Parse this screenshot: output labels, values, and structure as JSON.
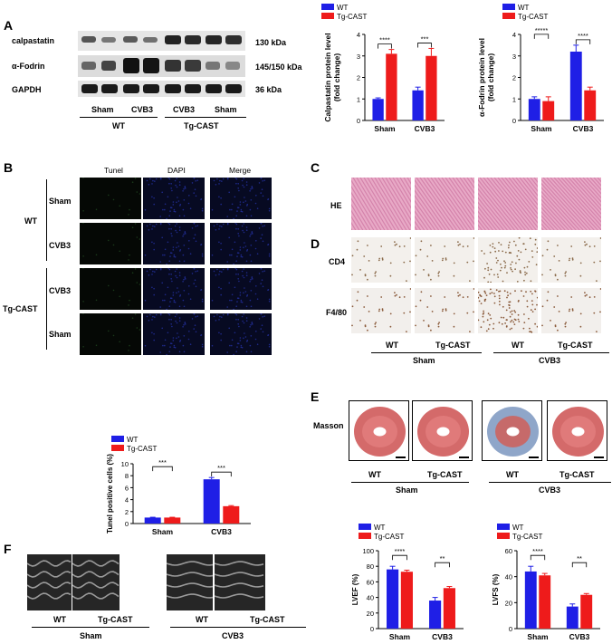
{
  "panels": {
    "A": "A",
    "B": "B",
    "C": "C",
    "D": "D",
    "E": "E",
    "F": "F"
  },
  "blot": {
    "rows": [
      {
        "label": "calpastatin",
        "kda": "130 kDa"
      },
      {
        "label": "α-Fodrin",
        "kda": "145/150 kDa"
      },
      {
        "label": "GAPDH",
        "kda": "36 kDa"
      }
    ],
    "lanes_top": [
      "Sham",
      "CVB3",
      "CVB3",
      "Sham"
    ],
    "groups": [
      "WT",
      "Tg-CAST"
    ]
  },
  "colors": {
    "wt": "#1f1fe6",
    "tg": "#ee1b1b"
  },
  "legend": {
    "wt": "WT",
    "tg": "Tg-CAST"
  },
  "tunel_grid": {
    "columns": [
      "Tunel",
      "DAPI",
      "Merge"
    ],
    "rows": [
      "Sham",
      "CVB3",
      "CVB3",
      "Sham"
    ],
    "groups": [
      "WT",
      "Tg-CAST"
    ]
  },
  "histology": {
    "he_label": "HE",
    "cd4_label": "CD4",
    "f480_label": "F4/80",
    "columns": [
      "WT",
      "Tg-CAST",
      "WT",
      "Tg-CAST"
    ],
    "groups": [
      "Sham",
      "CVB3"
    ]
  },
  "masson": {
    "label": "Masson",
    "columns": [
      "WT",
      "Tg-CAST",
      "WT",
      "Tg-CAST"
    ],
    "groups": [
      "Sham",
      "CVB3"
    ]
  },
  "echo": {
    "columns": [
      "WT",
      "Tg-CAST",
      "WT",
      "Tg-CAST"
    ],
    "groups": [
      "Sham",
      "CVB3"
    ]
  },
  "chart_data": [
    {
      "id": "calpastatin",
      "type": "bar",
      "categories": [
        "Sham",
        "CVB3"
      ],
      "ylabel": "Calpastatin protein level\n(fold change)",
      "ylim": [
        0,
        4
      ],
      "yticks": [
        0,
        1,
        2,
        3,
        4
      ],
      "series": [
        {
          "name": "WT",
          "values": [
            1.0,
            1.4
          ],
          "errors": [
            0.05,
            0.15
          ]
        },
        {
          "name": "Tg-CAST",
          "values": [
            3.1,
            3.0
          ],
          "errors": [
            0.2,
            0.35
          ]
        }
      ],
      "brackets": [
        {
          "cat": 0,
          "label": "****"
        },
        {
          "cat": 1,
          "label": "***"
        }
      ]
    },
    {
      "id": "fodrin",
      "type": "bar",
      "categories": [
        "Sham",
        "CVB3"
      ],
      "ylabel": "α-Fodrin protein level\n(fold change)",
      "ylim": [
        0,
        4
      ],
      "yticks": [
        0,
        1,
        2,
        3,
        4
      ],
      "series": [
        {
          "name": "WT",
          "values": [
            1.0,
            3.2
          ],
          "errors": [
            0.1,
            0.3
          ]
        },
        {
          "name": "Tg-CAST",
          "values": [
            0.9,
            1.4
          ],
          "errors": [
            0.2,
            0.15
          ]
        }
      ],
      "brackets": [
        {
          "from": [
            0,
            0
          ],
          "to": [
            1,
            0
          ],
          "label": "*****"
        },
        {
          "cat": 1,
          "label": "****"
        }
      ]
    },
    {
      "id": "tunel",
      "type": "bar",
      "categories": [
        "Sham",
        "CVB3"
      ],
      "ylabel": "Tunel positive cells (%)",
      "ylim": [
        0,
        10
      ],
      "yticks": [
        0,
        2,
        4,
        6,
        8,
        10
      ],
      "series": [
        {
          "name": "WT",
          "values": [
            1.0,
            7.4
          ],
          "errors": [
            0.05,
            0.3
          ]
        },
        {
          "name": "Tg-CAST",
          "values": [
            1.0,
            2.9
          ],
          "errors": [
            0.05,
            0.1
          ]
        }
      ],
      "brackets": [
        {
          "from": [
            0,
            0
          ],
          "to": [
            1,
            0
          ],
          "label": "***"
        },
        {
          "cat": 1,
          "label": "***"
        }
      ]
    },
    {
      "id": "lvef",
      "type": "bar",
      "categories": [
        "Sham",
        "CVB3"
      ],
      "ylabel": "LVEF (%)",
      "ylim": [
        0,
        100
      ],
      "yticks": [
        0,
        20,
        40,
        60,
        80,
        100
      ],
      "series": [
        {
          "name": "WT",
          "values": [
            76,
            36
          ],
          "errors": [
            4,
            4
          ]
        },
        {
          "name": "Tg-CAST",
          "values": [
            73,
            52
          ],
          "errors": [
            2,
            2
          ]
        }
      ],
      "brackets": [
        {
          "from": [
            0,
            0
          ],
          "to": [
            1,
            0
          ],
          "label": "****"
        },
        {
          "cat": 1,
          "label": "**"
        }
      ]
    },
    {
      "id": "lvfs",
      "type": "bar",
      "categories": [
        "Sham",
        "CVB3"
      ],
      "ylabel": "LVFS (%)",
      "ylim": [
        0,
        60
      ],
      "yticks": [
        0,
        20,
        40,
        60
      ],
      "series": [
        {
          "name": "WT",
          "values": [
            44,
            17
          ],
          "errors": [
            4,
            2
          ]
        },
        {
          "name": "Tg-CAST",
          "values": [
            41,
            26
          ],
          "errors": [
            1.5,
            1
          ]
        }
      ],
      "brackets": [
        {
          "from": [
            0,
            0
          ],
          "to": [
            1,
            0
          ],
          "label": "****"
        },
        {
          "cat": 1,
          "label": "**"
        }
      ]
    }
  ]
}
